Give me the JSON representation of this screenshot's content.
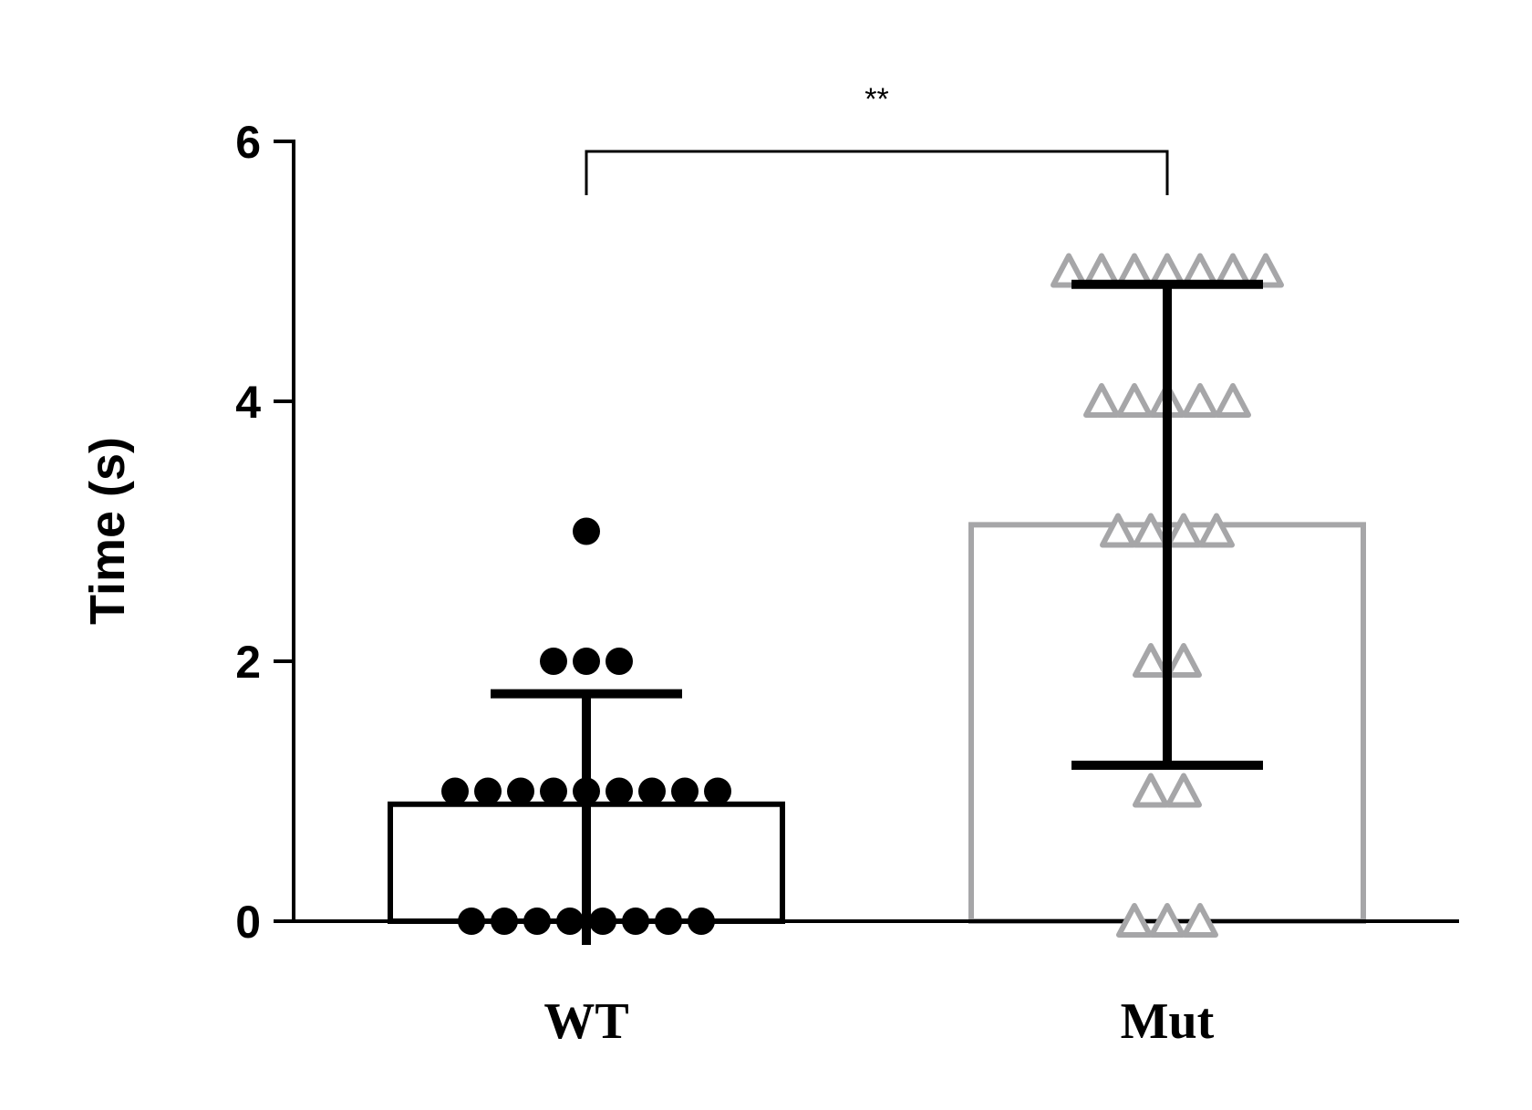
{
  "chart_data": {
    "type": "bar",
    "title": "",
    "xlabel": "",
    "ylabel": "Time (s)",
    "ylim": [
      0,
      6
    ],
    "yticks": [
      "0",
      "2",
      "4",
      "6"
    ],
    "categories": [
      "WT",
      "Mut"
    ],
    "grid": false,
    "legend": "none",
    "series": [
      {
        "category": "WT",
        "mean": 0.9,
        "sd_upper": 1.75,
        "sd_lower": 0,
        "bar_edge_color": "#000000",
        "marker": "filled-circle",
        "marker_color": "#000000",
        "points": [
          0,
          0,
          0,
          0,
          0,
          0,
          0,
          0,
          1,
          1,
          1,
          1,
          1,
          1,
          1,
          1,
          1,
          2,
          2,
          2,
          3
        ]
      },
      {
        "category": "Mut",
        "mean": 3.05,
        "sd_upper": 4.9,
        "sd_lower": 1.2,
        "bar_edge_color": "#a6a6a8",
        "marker": "hollow-triangle",
        "marker_color": "#a6a6a8",
        "points": [
          0,
          0,
          0,
          1,
          1,
          2,
          2,
          3,
          3,
          3,
          3,
          4,
          4,
          4,
          4,
          4,
          5,
          5,
          5,
          5,
          5,
          5,
          5
        ]
      }
    ],
    "annotations": [
      {
        "text": "**",
        "between": [
          "WT",
          "Mut"
        ]
      }
    ]
  }
}
